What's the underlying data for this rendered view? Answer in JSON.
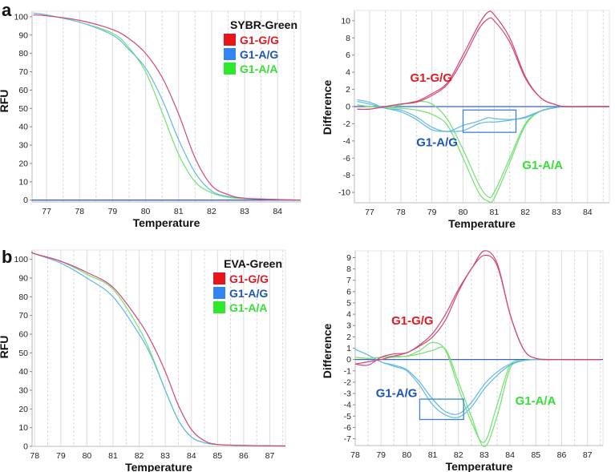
{
  "colors": {
    "gg_label": "#e01a22",
    "ag_label": "#1f55b5",
    "aa_label": "#35e035",
    "gg_line": "#d2457a",
    "ag_line": "#62b8e6",
    "aa_line": "#6fe36f",
    "gg_legend": "#e8141c",
    "ag_legend": "#3384f0",
    "aa_legend": "#2ee82e",
    "baseline": "#3b62c0",
    "box": "#3a82dc"
  },
  "chart_data": [
    {
      "type": "line",
      "panel_letter": "a",
      "title": "",
      "xlabel": "Temperature",
      "ylabel": "RFU",
      "xlim": [
        76.56,
        84.7
      ],
      "ylim": [
        -1,
        103
      ],
      "xticks": [
        77,
        78,
        79,
        80,
        81,
        82,
        83,
        84
      ],
      "yticks": [
        0,
        10,
        20,
        30,
        40,
        50,
        60,
        70,
        80,
        90,
        100
      ],
      "legend": {
        "title": "SYBR-Green",
        "placement": "top-right",
        "entries": [
          "G1-G/G",
          "G1-A/G",
          "G1-A/A"
        ]
      },
      "x": [
        76.6,
        77,
        78,
        79,
        79.5,
        80,
        80.5,
        81,
        81.5,
        82,
        82.5,
        83,
        84,
        84.7
      ],
      "series": [
        {
          "name": "G1-G/G",
          "key": "gg",
          "values": [
            101,
            100.5,
            98,
            93,
            88,
            80,
            67,
            47,
            23,
            8,
            3,
            1,
            0.3,
            0
          ]
        },
        {
          "name": "G1-A/G",
          "key": "ag",
          "values": [
            102,
            101,
            97,
            90,
            82,
            72,
            55,
            33,
            15,
            5,
            2,
            1,
            0.3,
            0
          ]
        },
        {
          "name": "G1-A/A",
          "key": "aa",
          "values": [
            102,
            101,
            97,
            91,
            83,
            70,
            48,
            25,
            10,
            4,
            1.5,
            0.8,
            0.3,
            0
          ]
        }
      ]
    },
    {
      "type": "line",
      "panel_letter": "",
      "title": "",
      "xlabel": "Temperature",
      "ylabel": "Difference",
      "xlim": [
        76.51,
        84.7
      ],
      "ylim": [
        -11.2,
        11.2
      ],
      "xticks": [
        77,
        78,
        79,
        80,
        81,
        82,
        83,
        84
      ],
      "yticks": [
        -10,
        -8,
        -6,
        -4,
        -2,
        0,
        2,
        4,
        6,
        8,
        10
      ],
      "annotations": [
        {
          "text": "G1-G/G",
          "key": "gg",
          "x": 78.3,
          "y": 2.9
        },
        {
          "text": "G1-A/G",
          "key": "ag",
          "x": 78.5,
          "y": -4.6
        },
        {
          "text": "G1-A/A",
          "key": "aa",
          "x": 81.9,
          "y": -7.3
        }
      ],
      "highlight_box": {
        "x": [
          80.0,
          81.7
        ],
        "y": [
          -0.4,
          -3.0
        ]
      },
      "x": [
        76.6,
        77,
        77.5,
        78,
        78.5,
        79,
        79.5,
        80,
        80.5,
        80.8,
        81,
        81.5,
        82,
        82.5,
        83,
        83.3,
        84,
        84.7
      ],
      "series": [
        {
          "name": "G1-G/G rep1",
          "key": "gg",
          "values": [
            -0.3,
            -0.3,
            0,
            0.3,
            0.6,
            1.5,
            2.8,
            6,
            9.5,
            11,
            10.7,
            8,
            3.5,
            1,
            0.2,
            0,
            0,
            0
          ]
        },
        {
          "name": "G1-G/G rep2",
          "key": "gg",
          "values": [
            -0.3,
            -0.3,
            0,
            0.3,
            0.5,
            1.3,
            2.6,
            5.5,
            9,
            10.2,
            10,
            7.5,
            3.3,
            1,
            0.2,
            0,
            0,
            0
          ]
        },
        {
          "name": "G1-A/G rep1",
          "key": "ag",
          "values": [
            0.8,
            0.5,
            -0.2,
            -0.4,
            -1.2,
            -2.4,
            -2.9,
            -2.2,
            -1.7,
            -1.3,
            -1.4,
            -1.5,
            -1.3,
            -0.5,
            -0.1,
            0,
            0,
            0
          ]
        },
        {
          "name": "G1-A/G rep2",
          "key": "ag",
          "values": [
            0.6,
            0.3,
            -0.2,
            -0.6,
            -1.5,
            -2.7,
            -2.9,
            -2.8,
            -2,
            -1.8,
            -1.8,
            -1.6,
            -1.2,
            -0.5,
            -0.1,
            0,
            0,
            0
          ]
        },
        {
          "name": "G1-A/A rep1",
          "key": "aa",
          "values": [
            0.2,
            0,
            -0.1,
            0.2,
            0.6,
            0.3,
            -1.5,
            -5,
            -9,
            -10.5,
            -10,
            -6,
            -2,
            -0.5,
            -0.1,
            0,
            0,
            0
          ]
        },
        {
          "name": "G1-A/A rep2",
          "key": "aa",
          "values": [
            0.2,
            0,
            -0.1,
            -0.2,
            -0.4,
            -0.9,
            -2.2,
            -6,
            -10,
            -11,
            -10.7,
            -6.5,
            -2.2,
            -0.5,
            -0.1,
            0,
            0,
            0
          ]
        }
      ]
    },
    {
      "type": "line",
      "panel_letter": "b",
      "title": "",
      "xlabel": "Temperature",
      "ylabel": "RFU",
      "xlim": [
        77.9,
        87.6
      ],
      "ylim": [
        0,
        105
      ],
      "xticks": [
        78,
        79,
        80,
        81,
        82,
        83,
        84,
        85,
        86,
        87
      ],
      "yticks": [
        0,
        10,
        20,
        30,
        40,
        50,
        60,
        70,
        80,
        90,
        100
      ],
      "legend": {
        "title": "EVA-Green",
        "placement": "top-right",
        "entries": [
          "G1-G/G",
          "G1-A/G",
          "G1-A/A"
        ]
      },
      "x": [
        77.9,
        78,
        79,
        80,
        81,
        82,
        82.5,
        83,
        83.5,
        84,
        84.5,
        85,
        86,
        87,
        87.6
      ],
      "series": [
        {
          "name": "G1-G/G",
          "key": "gg",
          "values": [
            104,
            103,
            99,
            93,
            85,
            67,
            55,
            40,
            22,
            9,
            3,
            1,
            0.5,
            0.3,
            0.2
          ]
        },
        {
          "name": "G1-A/G",
          "key": "ag",
          "values": [
            104,
            103,
            98,
            90,
            80,
            60,
            47,
            30,
            14,
            5,
            2,
            1,
            0.5,
            0.3,
            0.2
          ]
        },
        {
          "name": "G1-A/A",
          "key": "aa",
          "values": [
            104,
            103,
            99,
            92,
            84,
            63,
            48,
            30,
            14,
            5,
            2,
            1,
            0.5,
            0.3,
            0.2
          ]
        }
      ]
    },
    {
      "type": "line",
      "panel_letter": "",
      "title": "",
      "xlabel": "Temperature",
      "ylabel": "Difference",
      "xlim": [
        78,
        87.6
      ],
      "ylim": [
        -7.6,
        9.6
      ],
      "xticks": [
        78,
        79,
        80,
        81,
        82,
        83,
        84,
        85,
        86,
        87
      ],
      "yticks": [
        -7,
        -6,
        -5,
        -4,
        -3,
        -2,
        -1,
        0,
        1,
        2,
        3,
        4,
        5,
        6,
        7,
        8,
        9
      ],
      "annotations": [
        {
          "text": "G1-G/G",
          "key": "gg",
          "x": 79.4,
          "y": 3.1
        },
        {
          "text": "G1-A/G",
          "key": "ag",
          "x": 78.8,
          "y": -3.3
        },
        {
          "text": "G1-A/A",
          "key": "aa",
          "x": 84.2,
          "y": -4.0
        }
      ],
      "highlight_box": {
        "x": [
          80.5,
          82.2
        ],
        "y": [
          -3.5,
          -5.3
        ]
      },
      "x": [
        78,
        78.5,
        79,
        79.5,
        80,
        80.5,
        81,
        81.5,
        82,
        82.5,
        83,
        83.5,
        84,
        84.5,
        85,
        86,
        87.5
      ],
      "series": [
        {
          "name": "G1-G/G rep1",
          "key": "gg",
          "values": [
            -0.4,
            -0.5,
            0.2,
            0.5,
            0.6,
            1.3,
            2.3,
            4,
            6.2,
            8,
            9.6,
            8.5,
            4,
            1,
            0.1,
            0,
            0
          ]
        },
        {
          "name": "G1-G/G rep2",
          "key": "gg",
          "values": [
            -0.4,
            -0.2,
            0,
            0.3,
            0.6,
            1.2,
            2,
            3.5,
            6,
            8,
            9.2,
            8.3,
            4,
            1,
            0.1,
            0,
            0
          ]
        },
        {
          "name": "G1-A/G rep1",
          "key": "ag",
          "values": [
            0.9,
            0.4,
            -0.2,
            -0.5,
            -0.9,
            -2,
            -3.5,
            -4.6,
            -4.8,
            -3.8,
            -2.2,
            -1.1,
            -0.4,
            -0.1,
            0,
            0,
            0
          ]
        },
        {
          "name": "G1-A/G rep2",
          "key": "ag",
          "values": [
            0.9,
            0.4,
            -0.2,
            -0.6,
            -1,
            -2.3,
            -4,
            -4.9,
            -5.1,
            -4.2,
            -2.6,
            -1.4,
            -0.5,
            -0.1,
            0,
            0,
            0
          ]
        },
        {
          "name": "G1-A/A rep1",
          "key": "aa",
          "values": [
            0.2,
            0.1,
            0.2,
            0.3,
            0.3,
            0.8,
            1.5,
            0.8,
            -2.5,
            -5.5,
            -7.3,
            -4,
            -0.5,
            -0.1,
            0,
            0,
            0
          ]
        },
        {
          "name": "G1-A/A rep2",
          "key": "aa",
          "values": [
            0.2,
            0.1,
            0.2,
            0.2,
            0.3,
            0.5,
            0.8,
            0.9,
            -2,
            -5,
            -7.7,
            -5,
            -0.8,
            -0.1,
            0,
            0,
            0
          ]
        }
      ]
    }
  ]
}
